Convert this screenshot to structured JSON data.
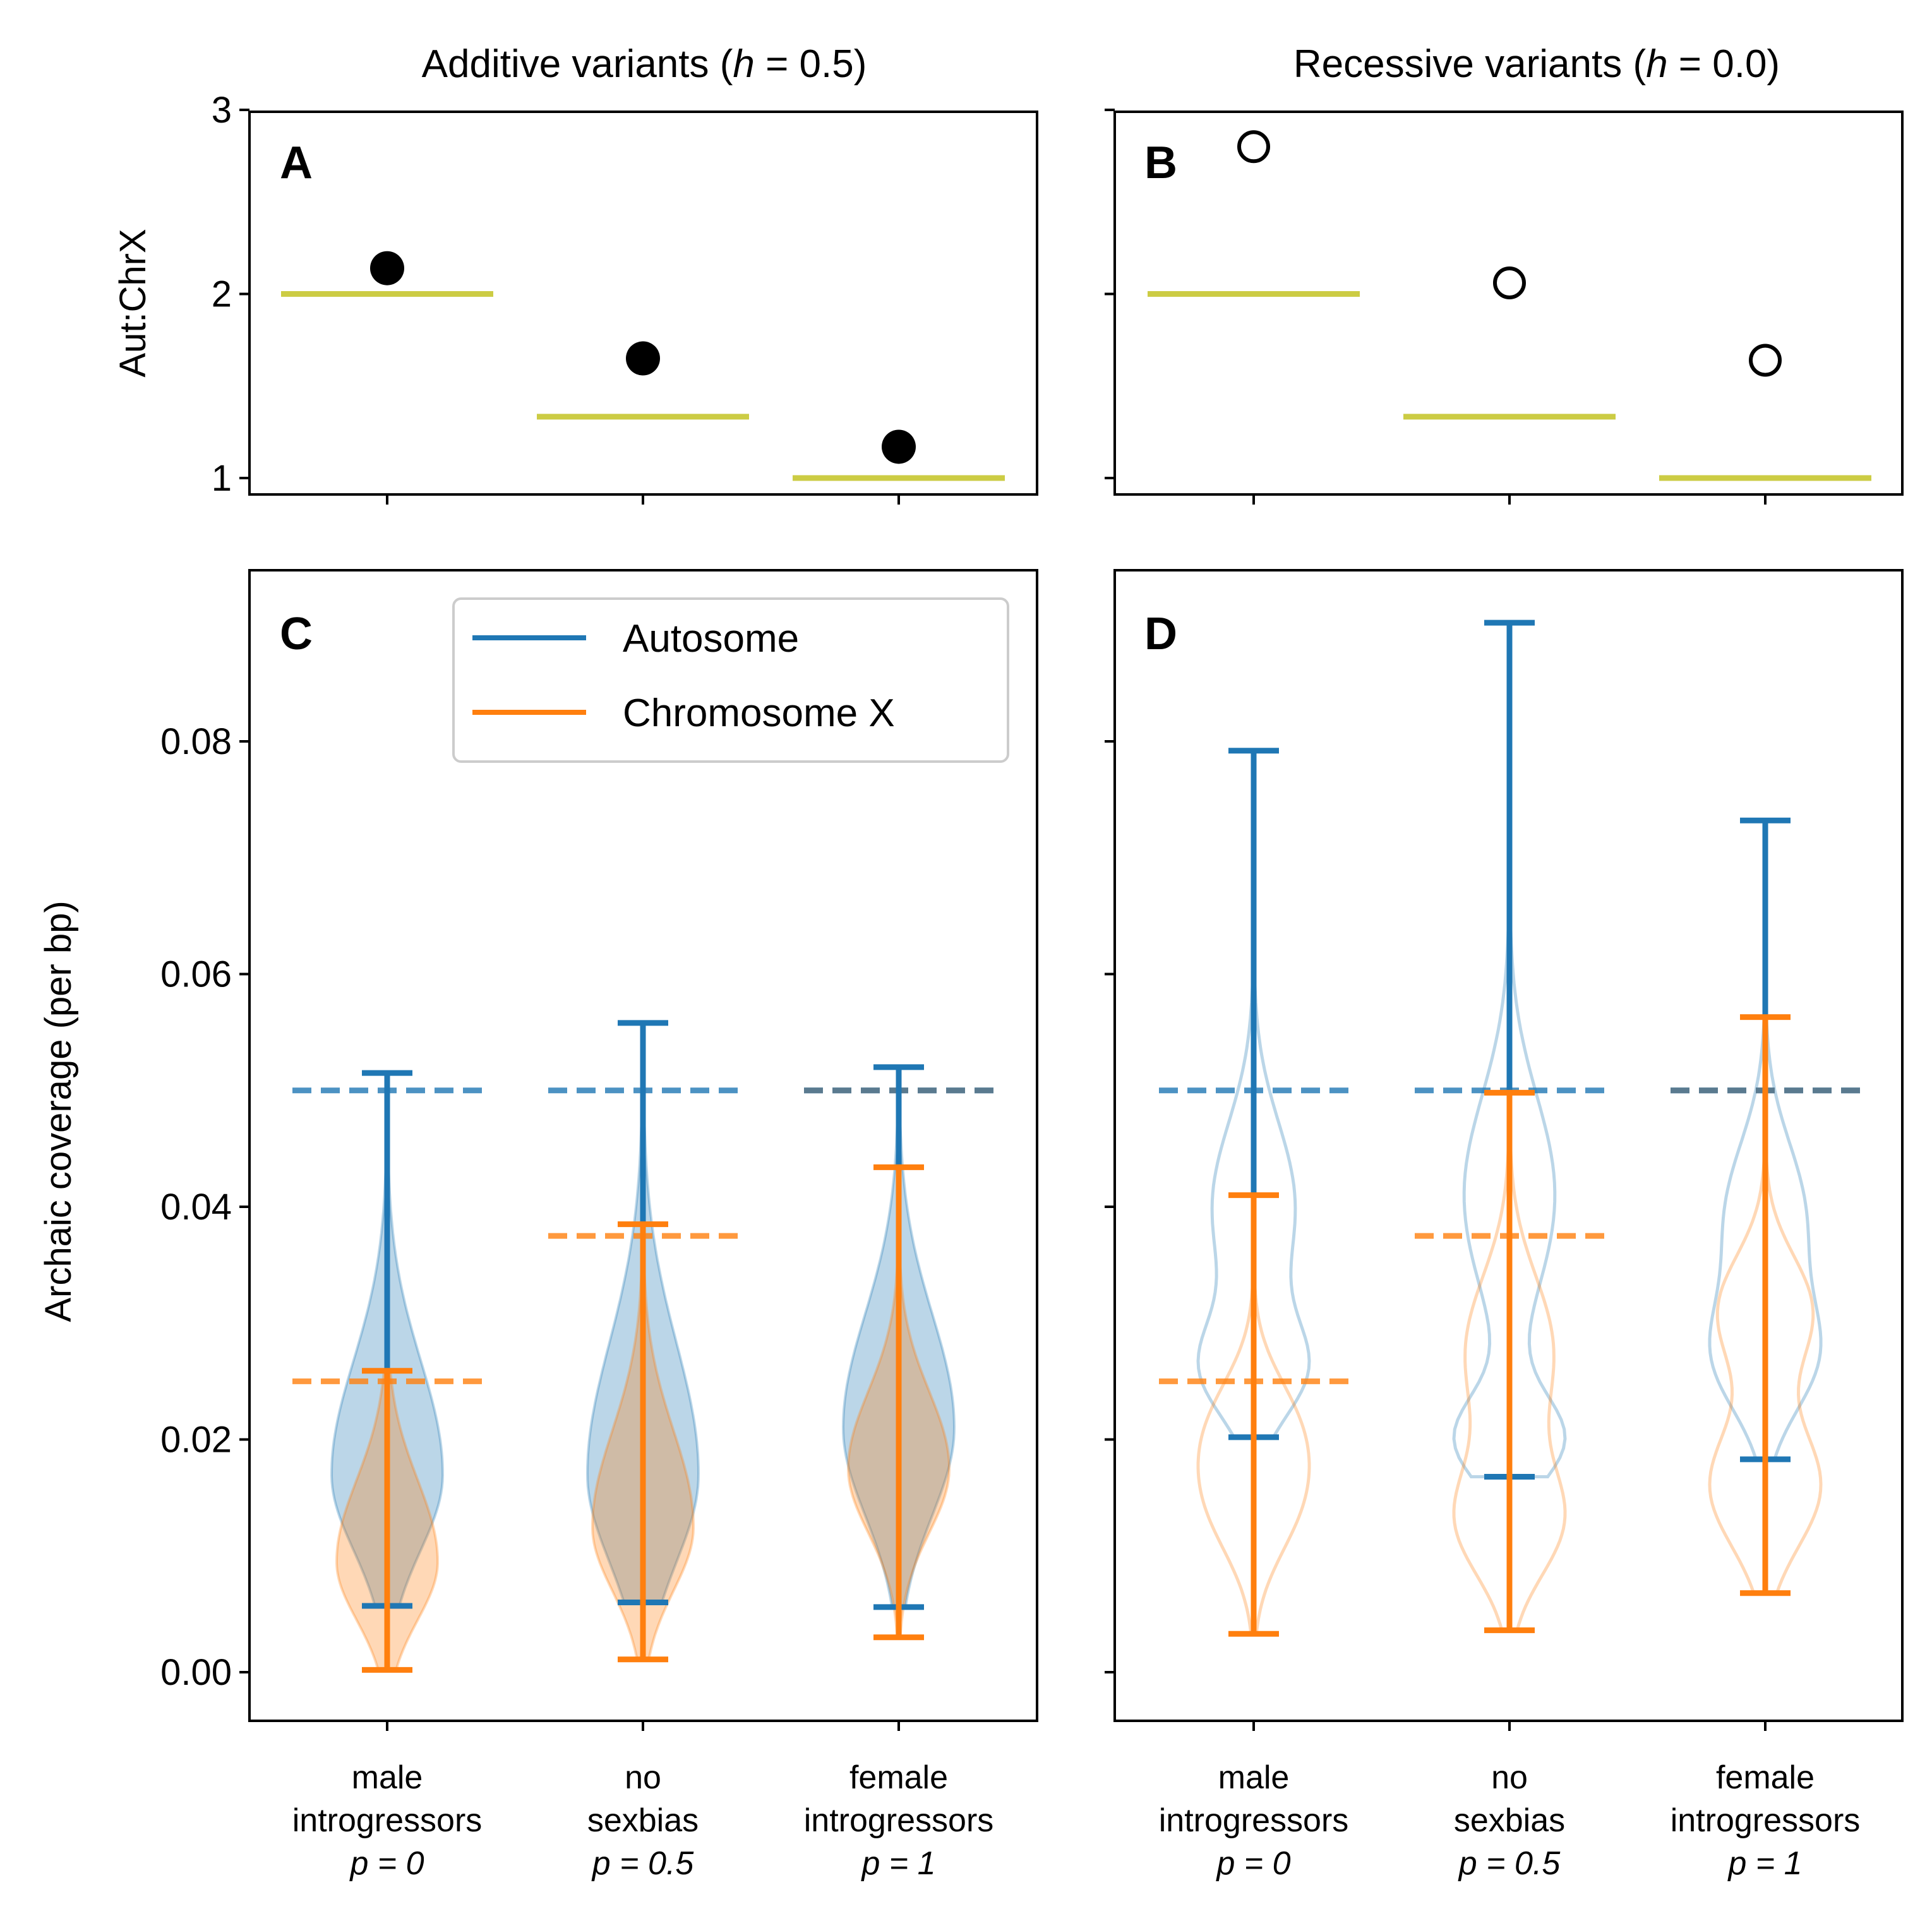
{
  "colors": {
    "autosome": "#1f77b4",
    "chrx": "#ff7f0e",
    "expected_ratio": "#cccc44",
    "overlap_dash": "#5a7a8f"
  },
  "categories": [
    {
      "line1": "male",
      "line2": "introgressors",
      "line3": "p = 0"
    },
    {
      "line1": "no",
      "line2": "sexbias",
      "line3": "p = 0.5"
    },
    {
      "line1": "female",
      "line2": "introgressors",
      "line3": "p = 1"
    }
  ],
  "titles": {
    "left_prefix": "Additive variants (",
    "left_var": "h",
    "left_suffix": " = 0.5)",
    "right_prefix": "Recessive variants (",
    "right_var": "h",
    "right_suffix": " = 0.0)"
  },
  "axes": {
    "top_ylabel": "Aut:ChrX",
    "bottom_ylabel": "Archaic coverage (per bp)",
    "top_yticks": [
      "1",
      "2",
      "3"
    ],
    "bottom_yticks": [
      "0.00",
      "0.02",
      "0.04",
      "0.06",
      "0.08"
    ]
  },
  "legend": {
    "autosome": "Autosome",
    "chrx": "Chromosome X",
    "placement": "upper-right of panel C"
  },
  "panel_letters": [
    "A",
    "B",
    "C",
    "D"
  ],
  "chart_data": [
    {
      "panel": "A",
      "type": "scatter",
      "categories": [
        "male introgressors p=0",
        "no sexbias p=0.5",
        "female introgressors p=1"
      ],
      "ylabel": "Aut:ChrX",
      "ylim": [
        0.92,
        3.0
      ],
      "marker": "filled-circle",
      "values": [
        2.14,
        1.65,
        1.17
      ],
      "expected": [
        2.0,
        1.333,
        1.0
      ]
    },
    {
      "panel": "B",
      "type": "scatter",
      "categories": [
        "male introgressors p=0",
        "no sexbias p=0.5",
        "female introgressors p=1"
      ],
      "ylim": [
        0.92,
        3.0
      ],
      "marker": "open-circle",
      "values": [
        2.8,
        2.06,
        1.64
      ],
      "expected": [
        2.0,
        1.333,
        1.0
      ]
    },
    {
      "panel": "C",
      "type": "violin",
      "categories": [
        "male introgressors p=0",
        "no sexbias p=0.5",
        "female introgressors p=1"
      ],
      "ylabel": "Archaic coverage (per bp)",
      "ylim": [
        -0.004,
        0.095
      ],
      "filled": true,
      "series": [
        {
          "name": "Autosome",
          "min": [
            0.0057,
            0.006,
            0.0056
          ],
          "max": [
            0.0515,
            0.0558,
            0.052
          ],
          "expected": [
            0.05,
            0.05,
            0.05
          ],
          "density": [
            {
              "center": 0.017,
              "spread": 0.0065,
              "skew": 0.5
            },
            {
              "center": 0.017,
              "spread": 0.0075,
              "skew": 0.5
            },
            {
              "center": 0.021,
              "spread": 0.0075,
              "skew": 0.3
            }
          ]
        },
        {
          "name": "Chromosome X",
          "min": [
            0.0002,
            0.0011,
            0.003
          ],
          "max": [
            0.0259,
            0.0385,
            0.0434
          ],
          "expected": [
            0.025,
            0.0375,
            0.05
          ],
          "density": [
            {
              "center": 0.0095,
              "spread": 0.005,
              "skew": 0.4
            },
            {
              "center": 0.0125,
              "spread": 0.0055,
              "skew": 0.5
            },
            {
              "center": 0.0175,
              "spread": 0.0055,
              "skew": 0.2
            }
          ]
        }
      ]
    },
    {
      "panel": "D",
      "type": "violin",
      "categories": [
        "male introgressors p=0",
        "no sexbias p=0.5",
        "female introgressors p=1"
      ],
      "ylim": [
        -0.004,
        0.095
      ],
      "filled": false,
      "series": [
        {
          "name": "Autosome",
          "min": [
            0.0202,
            0.0168,
            0.0183
          ],
          "max": [
            0.0792,
            0.0902,
            0.0732
          ],
          "expected": [
            0.05,
            0.05,
            0.05
          ],
          "bimodal": [
            [
              0.026,
              0.0042,
              0.04,
              0.0072
            ],
            [
              0.02,
              0.0038,
              0.041,
              0.0085
            ],
            [
              0.027,
              0.0048,
              0.039,
              0.0065
            ]
          ]
        },
        {
          "name": "Chromosome X",
          "min": [
            0.0033,
            0.0036,
            0.0068
          ],
          "max": [
            0.041,
            0.0498,
            0.0563
          ],
          "expected": [
            0.025,
            0.0375,
            0.05
          ],
          "bimodal": [
            [
              0.0145,
              0.0048,
              0.0215,
              0.0045
            ],
            [
              0.013,
              0.0048,
              0.0275,
              0.0065
            ],
            [
              0.016,
              0.0052,
              0.031,
              0.0048
            ]
          ]
        }
      ]
    }
  ]
}
